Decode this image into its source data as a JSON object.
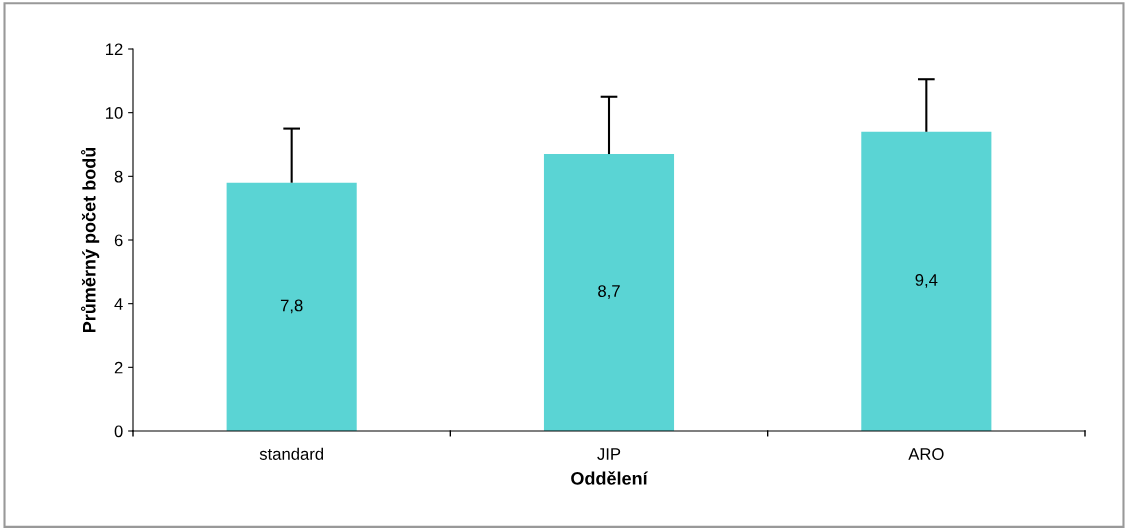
{
  "chart_data": {
    "type": "bar",
    "xlabel": "Oddělení",
    "ylabel": "Průměrný počet bodů",
    "categories": [
      "standard",
      "JIP",
      "ARO"
    ],
    "values": [
      7.8,
      8.7,
      9.4
    ],
    "value_labels": [
      "7,8",
      "8,7",
      "9,4"
    ],
    "errors": [
      [
        7.8,
        9.5
      ],
      [
        8.7,
        10.5
      ],
      [
        9.4,
        11.05
      ]
    ],
    "color": "#5ad4d4",
    "ylim": [
      0,
      12
    ],
    "yticks": [
      0,
      2,
      4,
      6,
      8,
      10,
      12
    ],
    "grid": false,
    "legend": false
  }
}
